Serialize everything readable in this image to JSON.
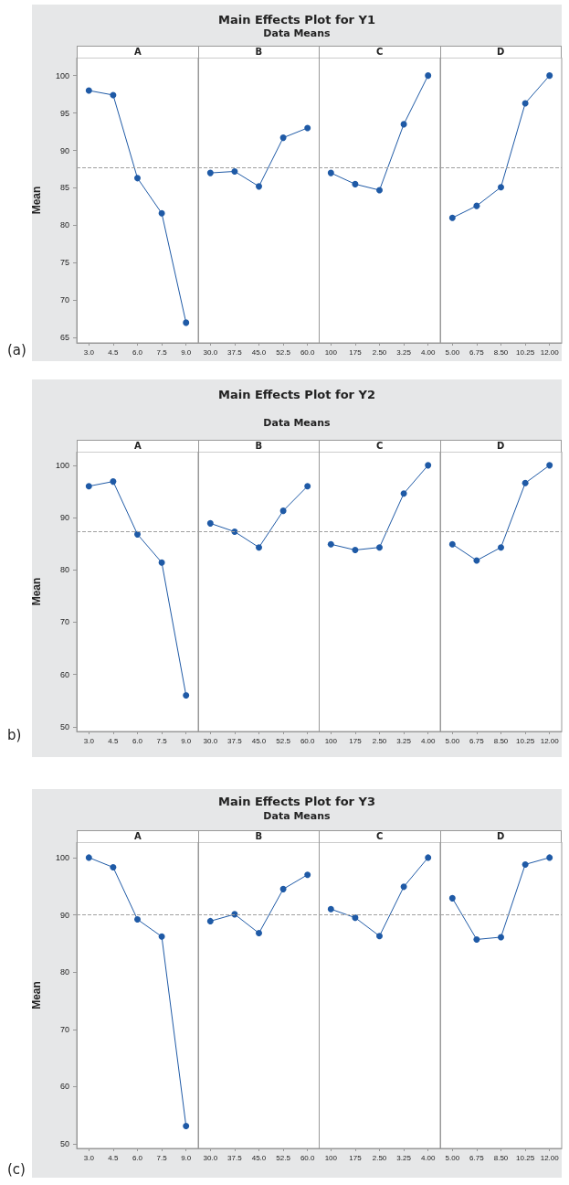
{
  "chart_data": [
    {
      "type": "other",
      "title": "Main Effects Plot for Y1",
      "subtitle": "Data Means"
    },
    {
      "type": "line",
      "annotations": [
        "(a)"
      ],
      "xlabel": "A",
      "ylabel": "Mean",
      "categories": [
        "3.0",
        "4.5",
        "6.0",
        "7.5",
        "9.0"
      ],
      "series": [
        {
          "color": "#1f5aa6",
          "values": [
            98.0,
            97.4,
            86.3,
            81.6,
            67.0
          ]
        }
      ],
      "ylim": [
        64.3,
        102.4
      ],
      "yticks": [
        65,
        70,
        75,
        80,
        85,
        90,
        95,
        100
      ],
      "ref_lines": [
        {
          "axis": "y",
          "value": 87.7,
          "label": null,
          "color": "#a0a0a0",
          "line_style": "dashed"
        }
      ],
      "marker": "circle",
      "line_style": "solid",
      "grid": false
    },
    {
      "type": "line",
      "xlabel": "B",
      "categories": [
        "30.0",
        "37.5",
        "45.0",
        "52.5",
        "60.0"
      ],
      "series": [
        {
          "color": "#1f5aa6",
          "values": [
            87.0,
            87.2,
            85.2,
            91.7,
            93.0
          ]
        }
      ],
      "ylim": [
        64.3,
        102.4
      ],
      "yticks": [
        65,
        70,
        75,
        80,
        85,
        90,
        95,
        100
      ],
      "tick_labels": "x",
      "ref_lines": [
        {
          "axis": "y",
          "value": 87.7,
          "label": null,
          "color": "#a0a0a0",
          "line_style": "dashed"
        }
      ],
      "marker": "circle",
      "line_style": "solid",
      "grid": false
    },
    {
      "type": "line",
      "xlabel": "C",
      "categories": [
        "100",
        "175",
        "2.50",
        "3.25",
        "4.00"
      ],
      "series": [
        {
          "color": "#1f5aa6",
          "values": [
            87.0,
            85.5,
            84.7,
            93.5,
            100.0
          ]
        }
      ],
      "ylim": [
        64.3,
        102.4
      ],
      "yticks": [
        65,
        70,
        75,
        80,
        85,
        90,
        95,
        100
      ],
      "tick_labels": "x",
      "ref_lines": [
        {
          "axis": "y",
          "value": 87.7,
          "label": null,
          "color": "#a0a0a0",
          "line_style": "dashed"
        }
      ],
      "marker": "circle",
      "line_style": "solid",
      "grid": false
    },
    {
      "type": "line",
      "xlabel": "D",
      "categories": [
        "5.00",
        "6.75",
        "8.50",
        "10.25",
        "12.00"
      ],
      "series": [
        {
          "color": "#1f5aa6",
          "values": [
            81.0,
            82.6,
            85.1,
            96.3,
            100.0
          ]
        }
      ],
      "ylim": [
        64.3,
        102.4
      ],
      "yticks": [
        65,
        70,
        75,
        80,
        85,
        90,
        95,
        100
      ],
      "tick_labels": "x",
      "ref_lines": [
        {
          "axis": "y",
          "value": 87.7,
          "label": null,
          "color": "#a0a0a0",
          "line_style": "dashed"
        }
      ],
      "marker": "circle",
      "line_style": "solid",
      "grid": false
    },
    {
      "type": "other",
      "title": "Main Effects Plot for Y2",
      "subtitle": "Data Means"
    },
    {
      "type": "line",
      "annotations": [
        "b)"
      ],
      "xlabel": "A",
      "ylabel": "Mean",
      "categories": [
        "3.0",
        "4.5",
        "6.0",
        "7.5",
        "9.0"
      ],
      "series": [
        {
          "color": "#1f5aa6",
          "values": [
            96.0,
            96.9,
            86.8,
            81.4,
            56.0
          ]
        }
      ],
      "ylim": [
        49.1,
        102.6
      ],
      "yticks": [
        50,
        60,
        70,
        80,
        90,
        100
      ],
      "ref_lines": [
        {
          "axis": "y",
          "value": 87.4,
          "label": null,
          "color": "#a0a0a0",
          "line_style": "dashed"
        }
      ],
      "marker": "circle",
      "line_style": "solid",
      "grid": false
    },
    {
      "type": "line",
      "xlabel": "B",
      "categories": [
        "30.0",
        "37.5",
        "45.0",
        "52.5",
        "60.0"
      ],
      "series": [
        {
          "color": "#1f5aa6",
          "values": [
            88.9,
            87.3,
            84.3,
            91.3,
            96.0
          ]
        }
      ],
      "ylim": [
        49.1,
        102.6
      ],
      "yticks": [
        50,
        60,
        70,
        80,
        90,
        100
      ],
      "tick_labels": "x",
      "ref_lines": [
        {
          "axis": "y",
          "value": 87.4,
          "label": null,
          "color": "#a0a0a0",
          "line_style": "dashed"
        }
      ],
      "marker": "circle",
      "line_style": "solid",
      "grid": false
    },
    {
      "type": "line",
      "xlabel": "C",
      "categories": [
        "100",
        "175",
        "2.50",
        "3.25",
        "4.00"
      ],
      "series": [
        {
          "color": "#1f5aa6",
          "values": [
            84.9,
            83.8,
            84.3,
            94.6,
            100.0
          ]
        }
      ],
      "ylim": [
        49.1,
        102.6
      ],
      "yticks": [
        50,
        60,
        70,
        80,
        90,
        100
      ],
      "tick_labels": "x",
      "ref_lines": [
        {
          "axis": "y",
          "value": 87.4,
          "label": null,
          "color": "#a0a0a0",
          "line_style": "dashed"
        }
      ],
      "marker": "circle",
      "line_style": "solid",
      "grid": false
    },
    {
      "type": "line",
      "xlabel": "D",
      "categories": [
        "5.00",
        "6.75",
        "8.50",
        "10.25",
        "12.00"
      ],
      "series": [
        {
          "color": "#1f5aa6",
          "values": [
            84.9,
            81.8,
            84.3,
            96.6,
            100.0
          ]
        }
      ],
      "ylim": [
        49.1,
        102.6
      ],
      "yticks": [
        50,
        60,
        70,
        80,
        90,
        100
      ],
      "tick_labels": "x",
      "ref_lines": [
        {
          "axis": "y",
          "value": 87.4,
          "label": null,
          "color": "#a0a0a0",
          "line_style": "dashed"
        }
      ],
      "marker": "circle",
      "line_style": "solid",
      "grid": false
    },
    {
      "type": "other",
      "title": "Main Effects Plot for Y3",
      "subtitle": "Data Means"
    },
    {
      "type": "line",
      "annotations": [
        "(c)"
      ],
      "xlabel": "A",
      "ylabel": "Mean",
      "categories": [
        "3.0",
        "4.5",
        "6.0",
        "7.5",
        "9.0"
      ],
      "series": [
        {
          "color": "#1f5aa6",
          "values": [
            100.0,
            98.3,
            89.2,
            86.2,
            53.1
          ]
        }
      ],
      "ylim": [
        49.2,
        102.7
      ],
      "yticks": [
        50,
        60,
        70,
        80,
        90,
        100
      ],
      "ref_lines": [
        {
          "axis": "y",
          "value": 90.0,
          "label": null,
          "color": "#a0a0a0",
          "line_style": "dashed"
        }
      ],
      "marker": "circle",
      "line_style": "solid",
      "grid": false
    },
    {
      "type": "line",
      "xlabel": "B",
      "categories": [
        "30.0",
        "37.5",
        "45.0",
        "52.5",
        "60.0"
      ],
      "series": [
        {
          "color": "#1f5aa6",
          "values": [
            88.9,
            90.1,
            86.8,
            94.5,
            97.0
          ]
        }
      ],
      "ylim": [
        49.2,
        102.7
      ],
      "yticks": [
        50,
        60,
        70,
        80,
        90,
        100
      ],
      "tick_labels": "x",
      "ref_lines": [
        {
          "axis": "y",
          "value": 90.0,
          "label": null,
          "color": "#a0a0a0",
          "line_style": "dashed"
        }
      ],
      "marker": "circle",
      "line_style": "solid",
      "grid": false
    },
    {
      "type": "line",
      "xlabel": "C",
      "categories": [
        "100",
        "175",
        "2.50",
        "3.25",
        "4.00"
      ],
      "series": [
        {
          "color": "#1f5aa6",
          "values": [
            91.0,
            89.5,
            86.3,
            94.9,
            100.0
          ]
        }
      ],
      "ylim": [
        49.2,
        102.7
      ],
      "yticks": [
        50,
        60,
        70,
        80,
        90,
        100
      ],
      "tick_labels": "x",
      "ref_lines": [
        {
          "axis": "y",
          "value": 90.0,
          "label": null,
          "color": "#a0a0a0",
          "line_style": "dashed"
        }
      ],
      "marker": "circle",
      "line_style": "solid",
      "grid": false
    },
    {
      "type": "line",
      "xlabel": "D",
      "categories": [
        "5.00",
        "6.75",
        "8.50",
        "10.25",
        "12.00"
      ],
      "series": [
        {
          "color": "#1f5aa6",
          "values": [
            92.9,
            85.7,
            86.1,
            98.8,
            100.0
          ]
        }
      ],
      "ylim": [
        49.2,
        102.7
      ],
      "yticks": [
        50,
        60,
        70,
        80,
        90,
        100
      ],
      "tick_labels": "x",
      "ref_lines": [
        {
          "axis": "y",
          "value": 90.0,
          "label": null,
          "color": "#a0a0a0",
          "line_style": "dashed"
        }
      ],
      "marker": "circle",
      "line_style": "solid",
      "grid": false
    }
  ]
}
